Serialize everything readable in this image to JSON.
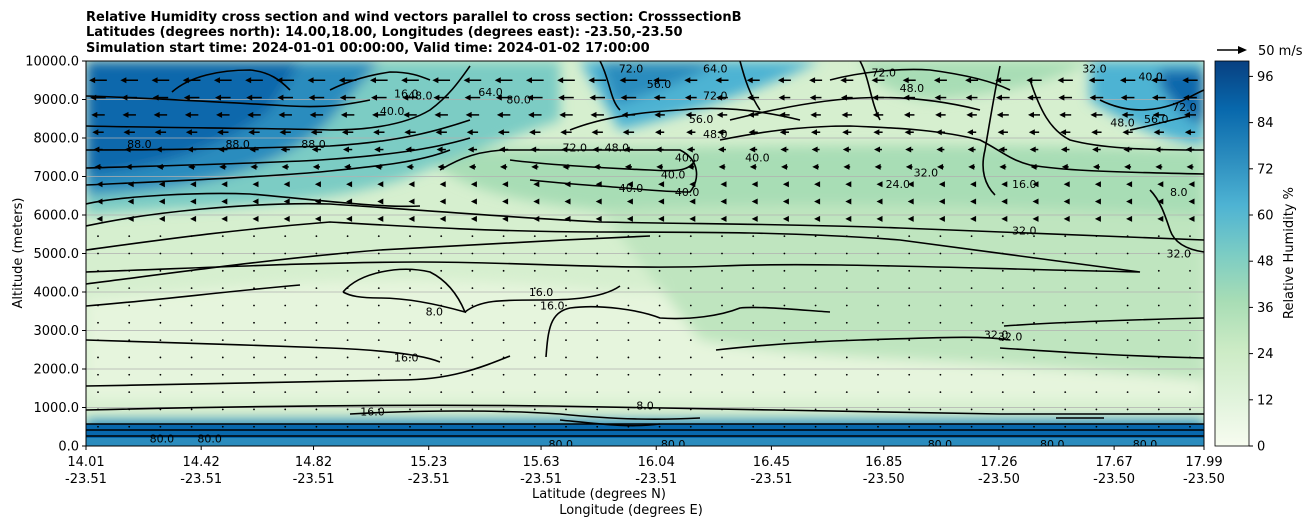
{
  "chart_data": {
    "type": "heatmap",
    "title_lines": [
      "Relative Humidity cross section and wind vectors parallel to cross section: CrosssectionB",
      "Latitudes (degrees north): 14.00,18.00, Longitudes (degrees east): -23.50,-23.50",
      "Simulation start time: 2024-01-01 00:00:00, Valid time: 2024-01-02 17:00:00"
    ],
    "ylabel": "Altitude (meters)",
    "xlabel_1": "Latitude (degrees N)",
    "xlabel_2": "Longitude (degrees E)",
    "ylim": [
      0,
      10000
    ],
    "y_ticks": [
      "0.0",
      "1000.0",
      "2000.0",
      "3000.0",
      "4000.0",
      "5000.0",
      "6000.0",
      "7000.0",
      "8000.0",
      "9000.0",
      "10000.0"
    ],
    "x_range": [
      14.01,
      17.99
    ],
    "x_ticks": [
      {
        "lat": "14.01",
        "lon": "-23.51"
      },
      {
        "lat": "14.42",
        "lon": "-23.51"
      },
      {
        "lat": "14.82",
        "lon": "-23.51"
      },
      {
        "lat": "15.23",
        "lon": "-23.51"
      },
      {
        "lat": "15.63",
        "lon": "-23.51"
      },
      {
        "lat": "16.04",
        "lon": "-23.51"
      },
      {
        "lat": "16.45",
        "lon": "-23.51"
      },
      {
        "lat": "16.85",
        "lon": "-23.50"
      },
      {
        "lat": "17.26",
        "lon": "-23.50"
      },
      {
        "lat": "17.67",
        "lon": "-23.50"
      },
      {
        "lat": "17.99",
        "lon": "-23.50"
      }
    ],
    "grid": "horizontal",
    "colorbar": {
      "label": "Relative Humidity %",
      "min": 0,
      "max": 100,
      "ticks": [
        "0",
        "12",
        "24",
        "36",
        "48",
        "60",
        "72",
        "84",
        "96"
      ],
      "colormap": "GnBu",
      "colors": [
        "#f7fcf0",
        "#e0f3db",
        "#ccebc5",
        "#a8ddb5",
        "#7bccc4",
        "#4eb3d3",
        "#2b8cbe",
        "#0868ac",
        "#084081"
      ]
    },
    "quiver_key": "50 m/s",
    "contour_labels": [
      {
        "text": "80.0",
        "x": 14.28,
        "y": 200
      },
      {
        "text": "80.0",
        "x": 14.45,
        "y": 200
      },
      {
        "text": "88.0",
        "x": 14.2,
        "y": 7850
      },
      {
        "text": "88.0",
        "x": 14.55,
        "y": 7850
      },
      {
        "text": "88.0",
        "x": 14.82,
        "y": 7850
      },
      {
        "text": "16.0",
        "x": 15.15,
        "y": 9150
      },
      {
        "text": "40.0",
        "x": 15.1,
        "y": 8700
      },
      {
        "text": "48.0",
        "x": 15.2,
        "y": 9100
      },
      {
        "text": "64.0",
        "x": 15.45,
        "y": 9200
      },
      {
        "text": "80.0",
        "x": 15.55,
        "y": 9000
      },
      {
        "text": "72.0",
        "x": 15.95,
        "y": 9800
      },
      {
        "text": "56.0",
        "x": 16.05,
        "y": 9400
      },
      {
        "text": "64.0",
        "x": 16.25,
        "y": 9800
      },
      {
        "text": "72.0",
        "x": 16.25,
        "y": 9100
      },
      {
        "text": "56.0",
        "x": 16.2,
        "y": 8500
      },
      {
        "text": "48.0",
        "x": 16.25,
        "y": 8100
      },
      {
        "text": "48.0",
        "x": 15.9,
        "y": 7750
      },
      {
        "text": "72.0",
        "x": 15.75,
        "y": 7750
      },
      {
        "text": "40.0",
        "x": 16.15,
        "y": 7500
      },
      {
        "text": "40.0",
        "x": 16.4,
        "y": 7500
      },
      {
        "text": "40.0",
        "x": 16.1,
        "y": 7050
      },
      {
        "text": "40.0",
        "x": 16.15,
        "y": 6600
      },
      {
        "text": "40.0",
        "x": 15.95,
        "y": 6700
      },
      {
        "text": "48.0",
        "x": 16.95,
        "y": 9300
      },
      {
        "text": "72.0",
        "x": 16.85,
        "y": 9700
      },
      {
        "text": "24.0",
        "x": 16.9,
        "y": 6800
      },
      {
        "text": "32.0",
        "x": 17.0,
        "y": 7100
      },
      {
        "text": "16.0",
        "x": 17.35,
        "y": 6800
      },
      {
        "text": "32.0",
        "x": 17.35,
        "y": 5600
      },
      {
        "text": "32.0",
        "x": 17.9,
        "y": 5000
      },
      {
        "text": "8.0",
        "x": 17.9,
        "y": 6600
      },
      {
        "text": "16.0",
        "x": 15.63,
        "y": 4000
      },
      {
        "text": "16.0",
        "x": 15.67,
        "y": 3650
      },
      {
        "text": "8.0",
        "x": 15.25,
        "y": 3500
      },
      {
        "text": "16.0",
        "x": 15.15,
        "y": 2300
      },
      {
        "text": "16.0",
        "x": 15.03,
        "y": 900
      },
      {
        "text": "8.0",
        "x": 16.0,
        "y": 1050
      },
      {
        "text": "32.0",
        "x": 17.25,
        "y": 2900
      },
      {
        "text": "32.0",
        "x": 17.3,
        "y": 2850
      },
      {
        "text": "48.0",
        "x": 17.7,
        "y": 8400
      },
      {
        "text": "56.0",
        "x": 17.82,
        "y": 8500
      },
      {
        "text": "72.0",
        "x": 17.92,
        "y": 8800
      },
      {
        "text": "40.0",
        "x": 17.8,
        "y": 9600
      },
      {
        "text": "32.0",
        "x": 17.6,
        "y": 9800
      },
      {
        "text": "80.0",
        "x": 17.05,
        "y": 50
      },
      {
        "text": "80.0",
        "x": 17.45,
        "y": 50
      },
      {
        "text": "80.0",
        "x": 17.78,
        "y": 50
      },
      {
        "text": "80.0",
        "x": 16.1,
        "y": 50
      },
      {
        "text": "80.0",
        "x": 15.7,
        "y": 50
      }
    ]
  }
}
